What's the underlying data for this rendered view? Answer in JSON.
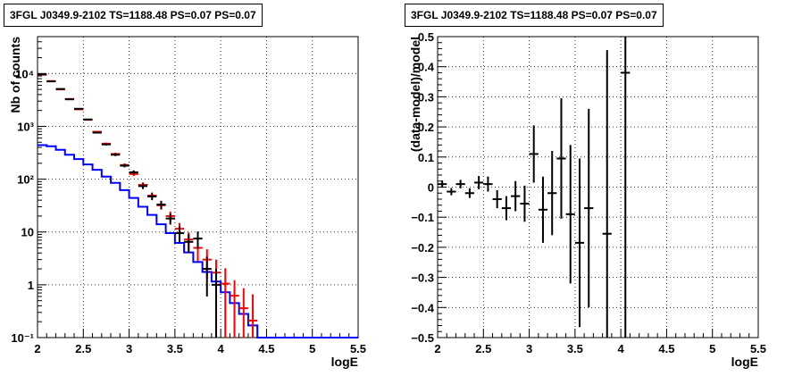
{
  "chart_data": [
    {
      "type": "line",
      "title": "3FGL J0349.9-2102 TS=1188.48 PS=0.07 PS=0.07",
      "xlabel": "logE",
      "ylabel": "Nb of counts",
      "xlim": [
        2,
        5.5
      ],
      "ylim": [
        0.1,
        50000
      ],
      "yscale": "log",
      "grid": true,
      "x_ticks": [
        2,
        2.5,
        3,
        3.5,
        4,
        4.5,
        5,
        5.5
      ],
      "x_tick_labels": [
        "2",
        "2.5",
        "3",
        "3.5",
        "4",
        "4.5",
        "5",
        "5.5"
      ],
      "y_ticks": [
        0.1,
        1,
        10,
        100,
        1000,
        10000
      ],
      "y_tick_labels": [
        "10⁻¹",
        "1",
        "10",
        "10²",
        "10³",
        "10⁴"
      ],
      "bin_edges": [
        2.0,
        2.1,
        2.2,
        2.3,
        2.4,
        2.5,
        2.6,
        2.7,
        2.8,
        2.9,
        3.0,
        3.1,
        3.2,
        3.3,
        3.4,
        3.5,
        3.6,
        3.7,
        3.8,
        3.9,
        4.0,
        4.1,
        4.2,
        4.3,
        4.4,
        4.5,
        4.6,
        4.7,
        4.8,
        4.9,
        5.0,
        5.1,
        5.2,
        5.3,
        5.4,
        5.5
      ],
      "series": [
        {
          "color": "#0000ff",
          "style": "step",
          "values": [
            440,
            420,
            360,
            290,
            240,
            190,
            150,
            112,
            85,
            62,
            44,
            30,
            21,
            14,
            9.5,
            6.2,
            4.1,
            2.7,
            1.75,
            1.15,
            0.72,
            0.45,
            0.28,
            0.17,
            0.1,
            0.1,
            0.1,
            0.1,
            0.1,
            0.1,
            0.1,
            0.1,
            0.1,
            0.1,
            0.1
          ]
        },
        {
          "color": "#ff0000",
          "style": "errorbar",
          "x": [
            2.05,
            2.15,
            2.25,
            2.35,
            2.45,
            2.55,
            2.65,
            2.75,
            2.85,
            2.95,
            3.05,
            3.15,
            3.25,
            3.35,
            3.45,
            3.55,
            3.65,
            3.75,
            3.85,
            3.95,
            4.05,
            4.15,
            4.25,
            4.35
          ],
          "y": [
            9500,
            7200,
            5000,
            3300,
            2100,
            1330,
            790,
            470,
            300,
            185,
            125,
            78,
            49,
            32,
            20,
            11.5,
            7.2,
            5.0,
            3.0,
            1.7,
            1.05,
            0.62,
            0.36,
            0.21
          ],
          "yerr_low": [
            100,
            85,
            70,
            57,
            46,
            36,
            28,
            22,
            17,
            14,
            11,
            9,
            7,
            5.5,
            4.4,
            3.3,
            2.6,
            2.2,
            1.7,
            1.3,
            1.0,
            0.6,
            0.36,
            0.21
          ],
          "yerr_high": [
            100,
            85,
            70,
            57,
            46,
            36,
            28,
            22,
            17,
            14,
            11,
            9,
            7,
            5.5,
            4.4,
            3.3,
            2.6,
            2.2,
            1.7,
            1.3,
            1.0,
            0.6,
            0.5,
            0.45
          ]
        },
        {
          "color": "#000000",
          "style": "errorbar",
          "x": [
            2.05,
            2.15,
            2.25,
            2.35,
            2.45,
            2.55,
            2.65,
            2.75,
            2.85,
            2.95,
            3.05,
            3.15,
            3.25,
            3.35,
            3.45,
            3.55,
            3.65,
            3.75,
            3.85,
            3.95
          ],
          "y": [
            9600,
            7100,
            5100,
            3250,
            2150,
            1350,
            760,
            455,
            290,
            180,
            135,
            74,
            47,
            33,
            18,
            9.5,
            6.5,
            7.5,
            2.0,
            1.0
          ],
          "yerr_low": [
            98,
            84,
            71,
            57,
            46,
            37,
            28,
            21,
            17,
            13,
            12,
            9,
            7,
            6,
            4.2,
            3.1,
            2.5,
            2.7,
            1.4,
            1.0
          ],
          "yerr_high": [
            98,
            84,
            71,
            57,
            46,
            37,
            28,
            21,
            17,
            13,
            12,
            9,
            7,
            6,
            4.2,
            3.1,
            2.5,
            2.7,
            1.4,
            1.0
          ]
        }
      ]
    },
    {
      "type": "scatter",
      "title": "3FGL J0349.9-2102 TS=1188.48 PS=0.07 PS=0.07",
      "xlabel": "logE",
      "ylabel": "(data-model)/model",
      "xlim": [
        2,
        5.5
      ],
      "ylim": [
        -0.5,
        0.5
      ],
      "grid": true,
      "x_ticks": [
        2,
        2.5,
        3,
        3.5,
        4,
        4.5,
        5,
        5.5
      ],
      "x_tick_labels": [
        "2",
        "2.5",
        "3",
        "3.5",
        "4",
        "4.5",
        "5",
        "5.5"
      ],
      "y_ticks": [
        -0.5,
        -0.4,
        -0.3,
        -0.2,
        -0.1,
        0,
        0.1,
        0.2,
        0.3,
        0.4,
        0.5
      ],
      "y_tick_labels": [
        "−0.5",
        "−0.4",
        "−0.3",
        "−0.2",
        "−0.1",
        "0",
        "0.1",
        "0.2",
        "0.3",
        "0.4",
        "0.5"
      ],
      "series": [
        {
          "color": "#000000",
          "style": "errorbar",
          "x": [
            2.05,
            2.15,
            2.25,
            2.35,
            2.45,
            2.55,
            2.65,
            2.75,
            2.85,
            2.95,
            3.05,
            3.15,
            3.25,
            3.35,
            3.45,
            3.55,
            3.65,
            3.85,
            4.05
          ],
          "y": [
            0.01,
            -0.015,
            0.01,
            -0.02,
            0.015,
            0.01,
            -0.04,
            -0.07,
            -0.03,
            -0.055,
            0.11,
            -0.075,
            -0.02,
            0.095,
            -0.09,
            -0.185,
            -0.07,
            -0.155,
            0.38
          ],
          "yerr": [
            0.012,
            0.012,
            0.014,
            0.016,
            0.022,
            0.025,
            0.03,
            0.04,
            0.05,
            0.06,
            0.095,
            0.11,
            0.14,
            0.2,
            0.23,
            0.28,
            0.33,
            0.61,
            0.9
          ]
        }
      ]
    }
  ]
}
